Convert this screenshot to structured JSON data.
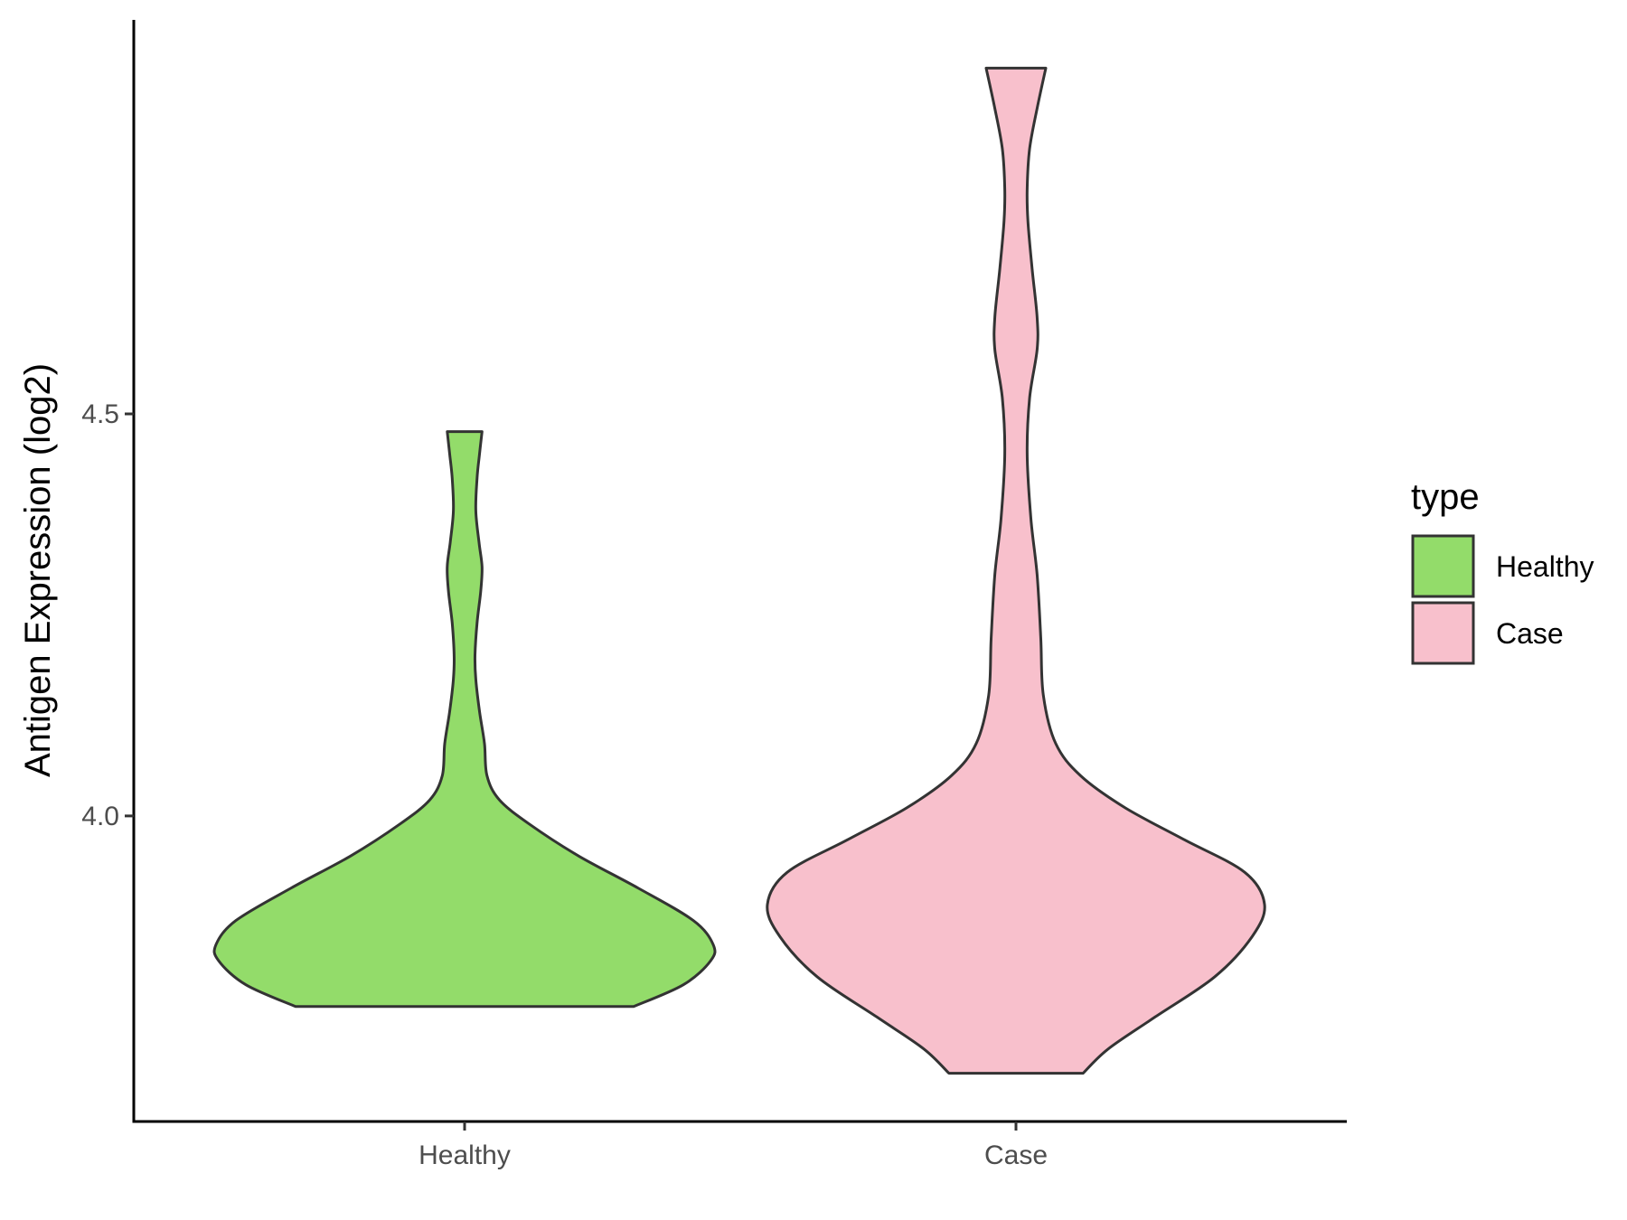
{
  "chart_data": {
    "type": "violin",
    "title": "",
    "xlabel": "",
    "ylabel": "Antigen Expression (log2)",
    "yticks": [
      4.0,
      4.5
    ],
    "ytick_labels": [
      "4.0",
      "4.5"
    ],
    "ylim": [
      3.62,
      4.99
    ],
    "grid": false,
    "legend": {
      "title": "type",
      "position": "right",
      "entries": [
        {
          "label": "Healthy",
          "color": "#93dc6a"
        },
        {
          "label": "Case",
          "color": "#f8c0cc"
        }
      ]
    },
    "categories": [
      "Healthy",
      "Case"
    ],
    "series": [
      {
        "name": "Healthy",
        "color": "#93dc6a",
        "min": 3.763,
        "max": 4.478,
        "density": [
          {
            "y": 3.763,
            "w": 0.68
          },
          {
            "y": 3.79,
            "w": 0.88
          },
          {
            "y": 3.82,
            "w": 0.99
          },
          {
            "y": 3.84,
            "w": 1.0
          },
          {
            "y": 3.87,
            "w": 0.92
          },
          {
            "y": 3.91,
            "w": 0.7
          },
          {
            "y": 3.95,
            "w": 0.46
          },
          {
            "y": 3.99,
            "w": 0.26
          },
          {
            "y": 4.02,
            "w": 0.14
          },
          {
            "y": 4.05,
            "w": 0.09
          },
          {
            "y": 4.09,
            "w": 0.08
          },
          {
            "y": 4.13,
            "w": 0.06
          },
          {
            "y": 4.17,
            "w": 0.045
          },
          {
            "y": 4.2,
            "w": 0.042
          },
          {
            "y": 4.24,
            "w": 0.05
          },
          {
            "y": 4.28,
            "w": 0.065
          },
          {
            "y": 4.31,
            "w": 0.07
          },
          {
            "y": 4.34,
            "w": 0.058
          },
          {
            "y": 4.38,
            "w": 0.045
          },
          {
            "y": 4.42,
            "w": 0.05
          },
          {
            "y": 4.45,
            "w": 0.06
          },
          {
            "y": 4.478,
            "w": 0.07
          }
        ]
      },
      {
        "name": "Case",
        "color": "#f8c0cc",
        "min": 3.68,
        "max": 4.93,
        "density": [
          {
            "y": 3.68,
            "w": 0.27
          },
          {
            "y": 3.71,
            "w": 0.37
          },
          {
            "y": 3.75,
            "w": 0.56
          },
          {
            "y": 3.8,
            "w": 0.8
          },
          {
            "y": 3.85,
            "w": 0.95
          },
          {
            "y": 3.89,
            "w": 1.0
          },
          {
            "y": 3.93,
            "w": 0.92
          },
          {
            "y": 3.97,
            "w": 0.68
          },
          {
            "y": 4.01,
            "w": 0.44
          },
          {
            "y": 4.05,
            "w": 0.26
          },
          {
            "y": 4.09,
            "w": 0.16
          },
          {
            "y": 4.15,
            "w": 0.11
          },
          {
            "y": 4.22,
            "w": 0.1
          },
          {
            "y": 4.3,
            "w": 0.085
          },
          {
            "y": 4.37,
            "w": 0.06
          },
          {
            "y": 4.45,
            "w": 0.045
          },
          {
            "y": 4.52,
            "w": 0.055
          },
          {
            "y": 4.58,
            "w": 0.085
          },
          {
            "y": 4.62,
            "w": 0.085
          },
          {
            "y": 4.68,
            "w": 0.065
          },
          {
            "y": 4.74,
            "w": 0.048
          },
          {
            "y": 4.78,
            "w": 0.045
          },
          {
            "y": 4.83,
            "w": 0.055
          },
          {
            "y": 4.88,
            "w": 0.085
          },
          {
            "y": 4.93,
            "w": 0.12
          }
        ]
      }
    ]
  }
}
